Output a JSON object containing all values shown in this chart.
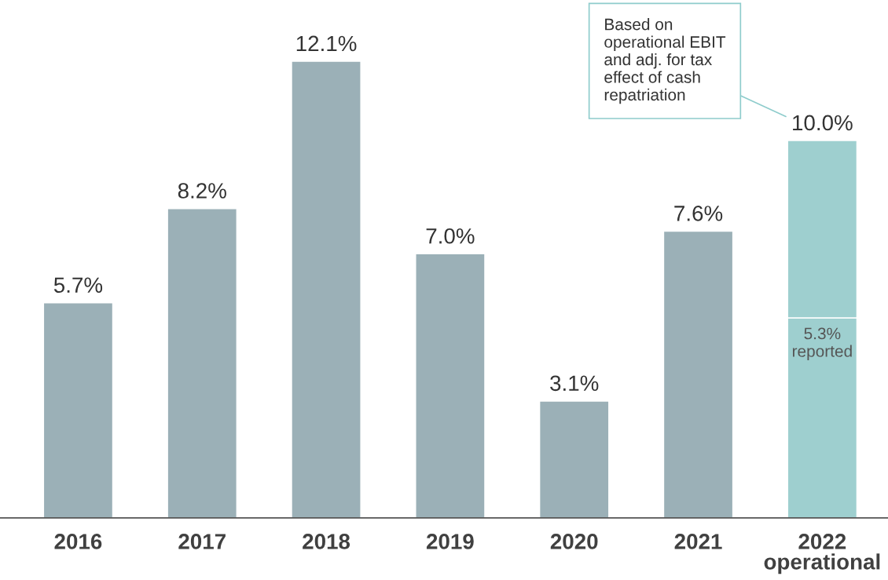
{
  "chart_data": {
    "type": "bar",
    "stacked": true,
    "categories": [
      "2016",
      "2017",
      "2018",
      "2019",
      "2020",
      "2021",
      "2022\noperational"
    ],
    "series": [
      {
        "colors": [
          "#9bb0b7",
          "#9bb0b7",
          "#9bb0b7",
          "#9bb0b7",
          "#9bb0b7",
          "#9bb0b7",
          "#9ecfcf"
        ],
        "values": [
          5.7,
          8.2,
          12.1,
          7.0,
          3.1,
          7.6,
          5.3
        ],
        "value_labels": [
          null,
          null,
          null,
          null,
          null,
          null,
          "5.3%\nreported"
        ]
      },
      {
        "color": "#9ecfcf",
        "values": [
          null,
          null,
          null,
          null,
          null,
          null,
          4.7
        ]
      }
    ],
    "totals": [
      "5.7%",
      "8.2%",
      "12.1%",
      "7.0%",
      "3.1%",
      "7.6%",
      "10.0%"
    ],
    "annotations": [
      "Based on\noperational EBIT\nand adj. for tax\neffect of cash\nrepatriation"
    ],
    "grid": false,
    "legend": false
  }
}
